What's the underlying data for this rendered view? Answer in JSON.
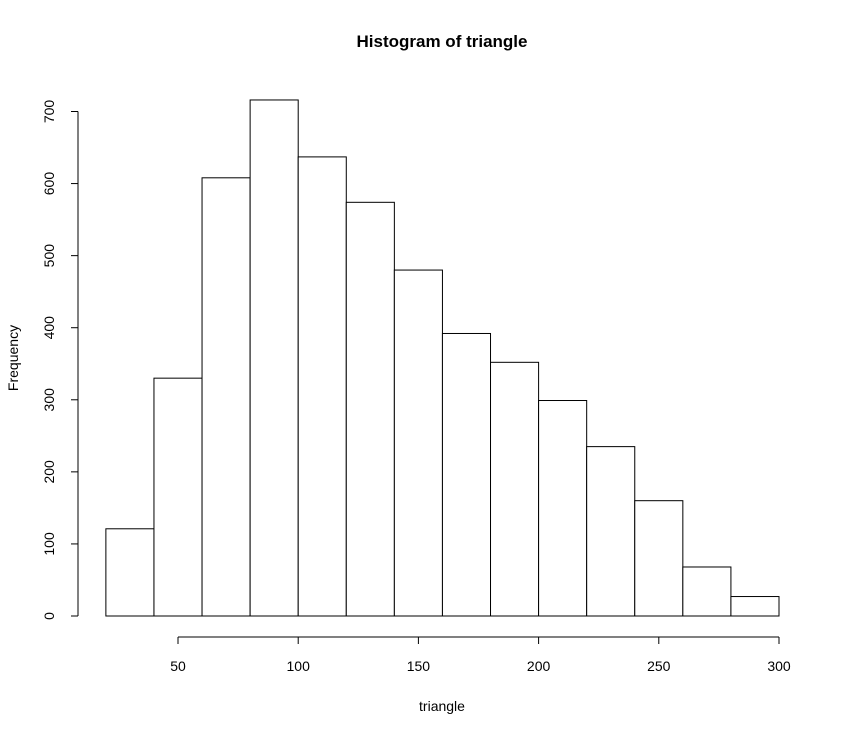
{
  "chart_data": {
    "type": "bar",
    "title": "Histogram of triangle",
    "xlabel": "triangle",
    "ylabel": "Frequency",
    "bin_edges": [
      20,
      40,
      60,
      80,
      100,
      120,
      140,
      160,
      180,
      200,
      220,
      240,
      260,
      280,
      300
    ],
    "values": [
      121,
      330,
      608,
      716,
      637,
      574,
      480,
      392,
      352,
      299,
      235,
      160,
      68,
      27
    ],
    "x_ticks": [
      50,
      100,
      150,
      200,
      250,
      300
    ],
    "y_ticks": [
      0,
      100,
      200,
      300,
      400,
      500,
      600,
      700
    ],
    "xlim": [
      50,
      300
    ],
    "ylim": [
      0,
      700
    ],
    "grid": false,
    "legend": "none"
  }
}
